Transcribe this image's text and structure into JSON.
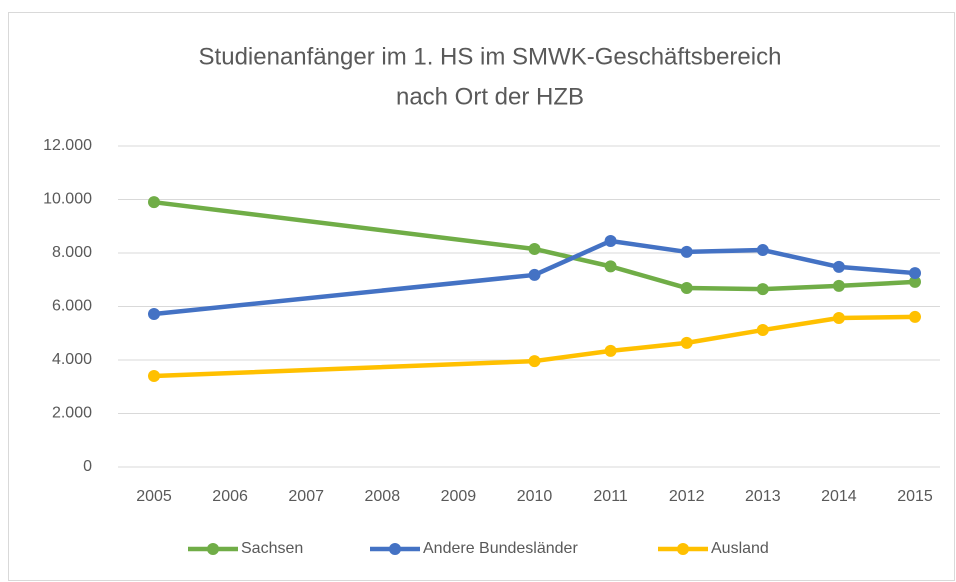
{
  "chart_data": {
    "type": "line",
    "title": [
      "Studienanfänger im 1. HS im SMWK-Geschäftsbereich",
      "nach Ort der HZB"
    ],
    "x": [
      2005,
      2010,
      2011,
      2012,
      2013,
      2014,
      2015
    ],
    "xlim": [
      2005,
      2015
    ],
    "xticks": [
      2005,
      2006,
      2007,
      2008,
      2009,
      2010,
      2011,
      2012,
      2013,
      2014,
      2015
    ],
    "ylim": [
      0,
      12000
    ],
    "yticks": [
      0,
      {
        "value": 2000,
        "label": "2.000"
      },
      {
        "value": 4000,
        "label": "4.000"
      },
      {
        "value": 6000,
        "label": "6.000"
      },
      {
        "value": 8000,
        "label": "8.000"
      },
      {
        "value": 10000,
        "label": "10.000"
      },
      {
        "value": 12000,
        "label": "12.000"
      }
    ],
    "grid": true,
    "legend": "bottom",
    "series": [
      {
        "name": "Sachsen",
        "color": "#70ad47",
        "values": [
          9900,
          8150,
          7500,
          6690,
          6650,
          6770,
          6920
        ]
      },
      {
        "name": "Andere Bundesländer",
        "color": "#4472c4",
        "values": [
          5720,
          7180,
          8450,
          8040,
          8110,
          7480,
          7250
        ]
      },
      {
        "name": "Ausland",
        "color": "#ffc000",
        "values": [
          3400,
          3960,
          4340,
          4640,
          5120,
          5570,
          5610
        ]
      }
    ]
  }
}
